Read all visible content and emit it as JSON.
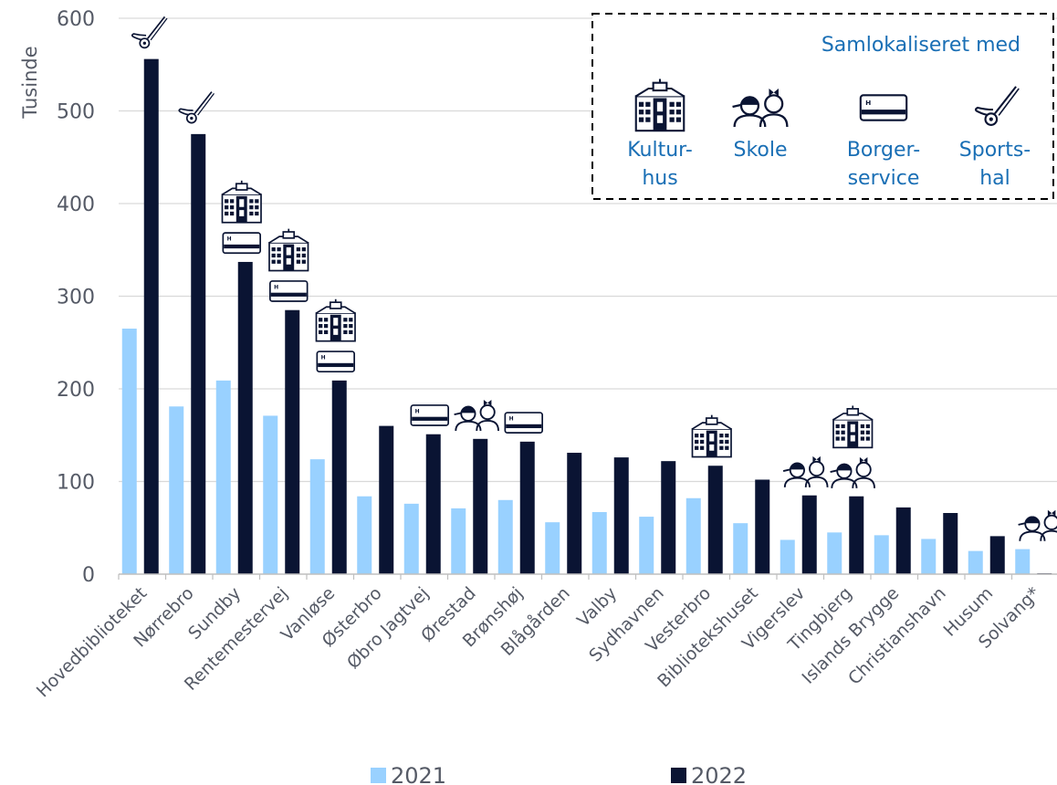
{
  "chart_data": {
    "type": "bar",
    "ylabel": "Tusinde",
    "ylim": [
      0,
      600
    ],
    "yticks": [
      0,
      100,
      200,
      300,
      400,
      500,
      600
    ],
    "grid": true,
    "categories": [
      "Hovedbiblioteket",
      "Nørrebro",
      "Sundby",
      "Rentemestervej",
      "Vanløse",
      "Østerbro",
      "Øbro Jagtvej",
      "Ørestad",
      "Brønshøj",
      "Blågården",
      "Valby",
      "Sydhavnen",
      "Vesterbro",
      "Bibliotekshuset",
      "Vigerslev",
      "Tingbjerg",
      "Islands Brygge",
      "Christianshavn",
      "Husum",
      "Solvang*"
    ],
    "series": [
      {
        "name": "2021",
        "color": "#99d1ff",
        "values": [
          265,
          181,
          209,
          171,
          124,
          84,
          76,
          71,
          80,
          56,
          67,
          62,
          82,
          55,
          37,
          45,
          42,
          38,
          25,
          27
        ]
      },
      {
        "name": "2022",
        "color": "#0a1433",
        "values": [
          556,
          475,
          337,
          285,
          209,
          160,
          151,
          146,
          143,
          131,
          126,
          122,
          117,
          102,
          85,
          84,
          72,
          66,
          41,
          1
        ]
      }
    ],
    "legend_position": "bottom",
    "icons_per_category": [
      [
        "sports-icon"
      ],
      [
        "sports-icon"
      ],
      [
        "culture-house-icon",
        "citizen-service-icon"
      ],
      [
        "culture-house-icon",
        "citizen-service-icon"
      ],
      [
        "culture-house-icon",
        "citizen-service-icon"
      ],
      [],
      [
        "citizen-service-icon"
      ],
      [
        "school-icon"
      ],
      [
        "citizen-service-icon"
      ],
      [],
      [],
      [],
      [
        "culture-house-icon"
      ],
      [],
      [
        "school-icon"
      ],
      [
        "culture-house-icon",
        "school-icon"
      ],
      [],
      [],
      [],
      [
        "school-icon"
      ]
    ],
    "annotation_box": {
      "title": "Samlokaliseret med",
      "items": [
        {
          "icon": "culture-house-icon",
          "label_lines": [
            "Kultur-",
            "hus"
          ]
        },
        {
          "icon": "school-icon",
          "label_lines": [
            "Skole"
          ]
        },
        {
          "icon": "citizen-service-icon",
          "label_lines": [
            "Borger-",
            "service"
          ]
        },
        {
          "icon": "sports-icon",
          "label_lines": [
            "Sports-",
            "hal"
          ]
        }
      ]
    }
  }
}
